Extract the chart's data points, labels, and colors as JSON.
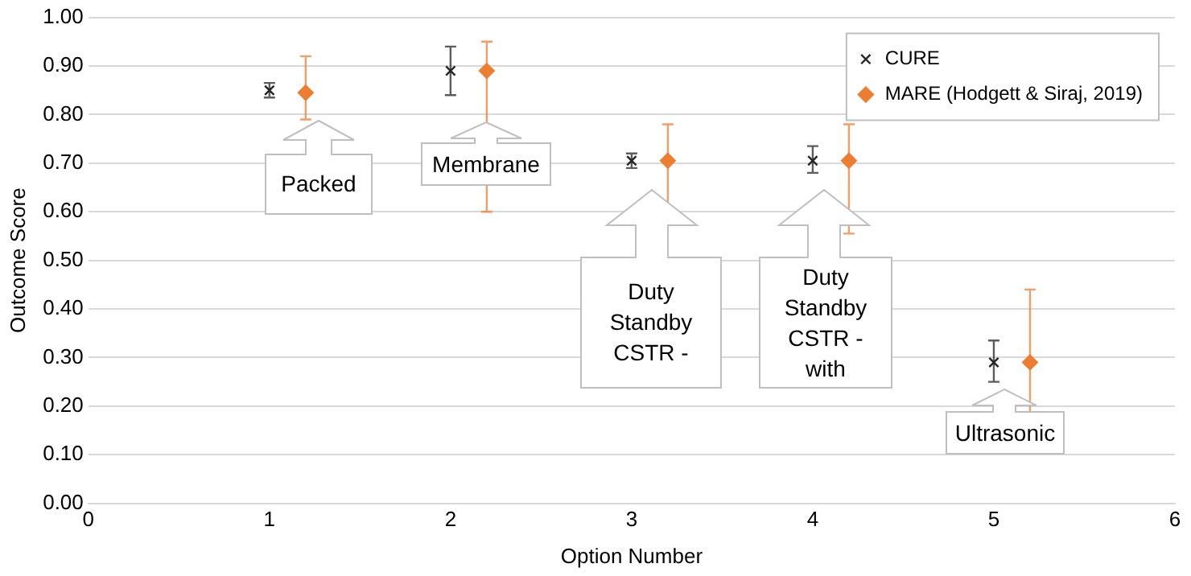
{
  "chart_data": {
    "type": "scatter",
    "xlabel": "Option Number",
    "ylabel": "Outcome Score",
    "xlim": [
      0,
      6
    ],
    "xticks": [
      0,
      1,
      2,
      3,
      4,
      5,
      6
    ],
    "ylim": [
      0,
      1
    ],
    "yticks": [
      {
        "value": 0,
        "label": "0.00"
      },
      {
        "value": 0.1,
        "label": "0.10"
      },
      {
        "value": 0.2,
        "label": "0.20"
      },
      {
        "value": 0.3,
        "label": "0.30"
      },
      {
        "value": 0.4,
        "label": "0.40"
      },
      {
        "value": 0.5,
        "label": "0.50"
      },
      {
        "value": 0.6,
        "label": "0.60"
      },
      {
        "value": 0.7,
        "label": "0.70"
      },
      {
        "value": 0.8,
        "label": "0.80"
      },
      {
        "value": 0.9,
        "label": "0.90"
      },
      {
        "value": 1,
        "label": "1.00"
      }
    ],
    "grid": "y",
    "legend": "top right",
    "series": [
      {
        "name": "CURE",
        "color": "#262626",
        "marker": "cross",
        "x": [
          1,
          2,
          3,
          4,
          5
        ],
        "values": [
          0.85,
          0.89,
          0.705,
          0.705,
          0.29
        ],
        "errors": [
          [
            0.835,
            0.865
          ],
          [
            0.84,
            0.94
          ],
          [
            0.69,
            0.72
          ],
          [
            0.68,
            0.735
          ],
          [
            0.25,
            0.335
          ]
        ]
      },
      {
        "name": "MARE (Hodgett & Siraj, 2019)",
        "color": "#ed7d31",
        "marker": "diamond",
        "x": [
          1.2,
          2.2,
          3.2,
          4.2,
          5.2
        ],
        "values": [
          0.845,
          0.89,
          0.705,
          0.705,
          0.29
        ],
        "errors": [
          [
            0.79,
            0.92
          ],
          [
            0.6,
            0.95
          ],
          [
            0.61,
            0.78
          ],
          [
            0.555,
            0.78
          ],
          [
            0.14,
            0.44
          ]
        ]
      }
    ],
    "annotations": [
      "Packed",
      "Membrane",
      "Duty Standby CSTR -",
      "Duty Standby CSTR - with",
      "Ultrasonic"
    ]
  }
}
